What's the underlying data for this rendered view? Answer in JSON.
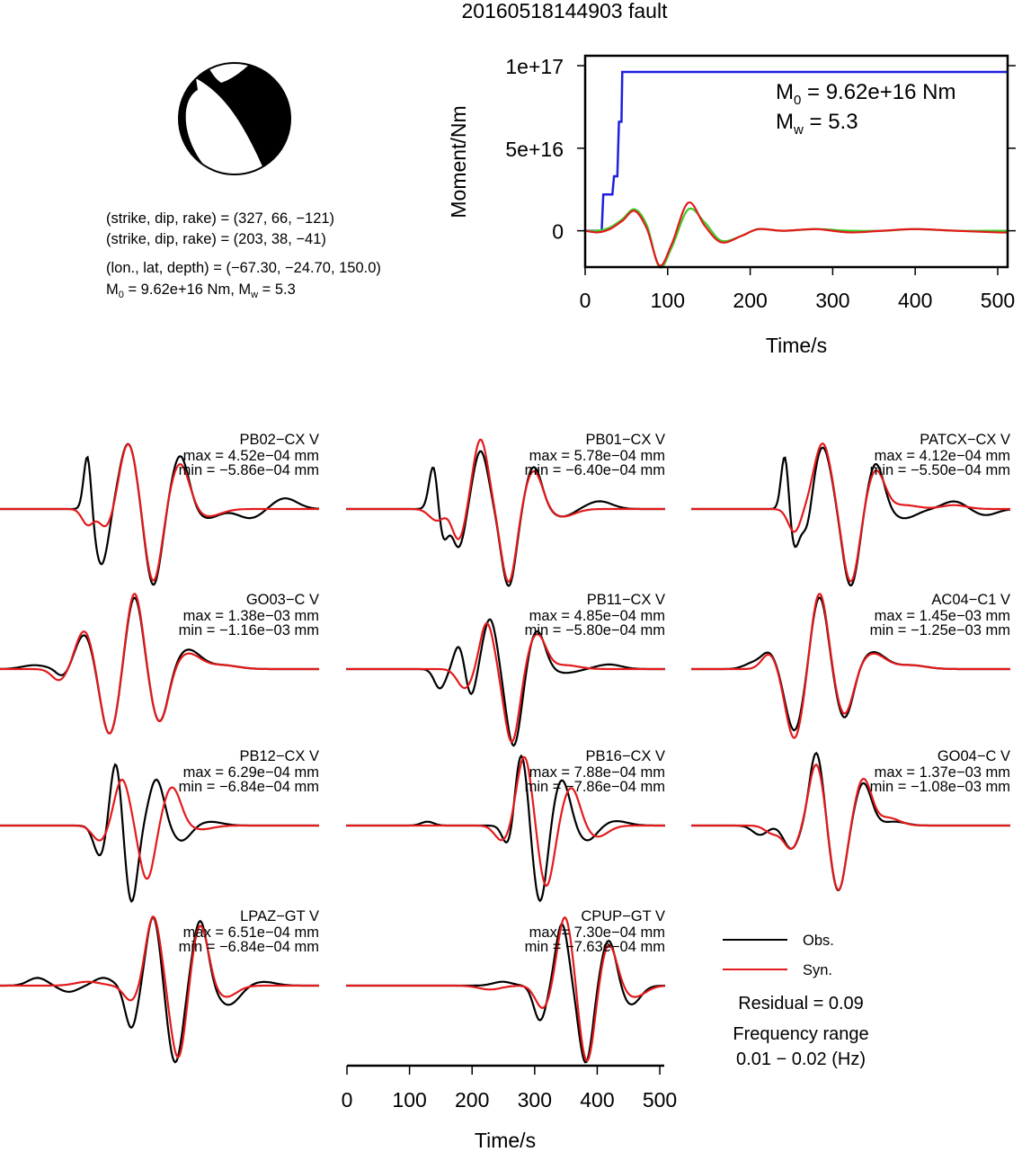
{
  "title": "20160518144903 fault",
  "mechanism": {
    "nodal_plane_1": "(strike, dip, rake) = (327, 66, −121)",
    "nodal_plane_2": "(strike, dip, rake) = (203, 38, −41)",
    "location": "(lon., lat, depth) = (−67.30, −24.70, 150.0)",
    "moment_prefix": "M",
    "moment_sub": "0",
    "moment_value": " = 9.62e+16 Nm, M",
    "mw_sub": "w",
    "mw_value": " = 5.3"
  },
  "colors": {
    "observed": "#000000",
    "synthetic": "#e31a1c",
    "moment": "#1f1fe0",
    "green": "#3ccc28"
  },
  "chart_data": [
    {
      "type": "line",
      "title": "",
      "xlabel": "Time/s",
      "ylabel": "Moment/Nm",
      "xlim": [
        0,
        512
      ],
      "ylim": [
        -22000000000000000,
        106000000000000000
      ],
      "x_ticks": [
        "0",
        "100",
        "200",
        "300",
        "400",
        "500"
      ],
      "y_ticks": [
        "0",
        "5e+16",
        "1e+17"
      ],
      "annotation": {
        "m0_label": "M",
        "m0_sub": "0",
        "m0_value": " = 9.62e+16 Nm",
        "mw_label": "M",
        "mw_sub": "w",
        "mw_value": " = 5.3"
      },
      "series": [
        {
          "color": "#1f1fe0",
          "x": [
            0,
            20,
            22,
            33,
            35,
            39,
            41,
            44,
            45,
            512
          ],
          "y": [
            0,
            0,
            22000000000000000,
            22000000000000000,
            33000000000000000,
            33000000000000000,
            66000000000000000,
            66000000000000000,
            96200000000000000,
            96200000000000000
          ]
        },
        {
          "color": "#3ccc28",
          "x": [
            0,
            15,
            30,
            45,
            60,
            75,
            90,
            105,
            125,
            145,
            165,
            190,
            210,
            240,
            280,
            320,
            360,
            400,
            450,
            500,
            512
          ],
          "y": [
            0,
            0,
            2000000000000000,
            7000000000000000,
            13000000000000000,
            3000000000000000,
            -22000000000000000,
            -10000000000000000,
            13000000000000000,
            5000000000000000,
            -6000000000000000,
            -3000000000000000,
            1000000000000000,
            0,
            1000000000000000,
            0,
            0,
            1000000000000000,
            0,
            0,
            0
          ]
        },
        {
          "color": "#e31a1c",
          "x": [
            0,
            15,
            30,
            45,
            60,
            75,
            90,
            105,
            125,
            145,
            165,
            190,
            210,
            240,
            280,
            320,
            360,
            400,
            450,
            500,
            512
          ],
          "y": [
            0,
            -1000000000000000,
            1000000000000000,
            6000000000000000,
            12000000000000000,
            1000000000000000,
            -21000000000000000,
            -8000000000000000,
            17000000000000000,
            3000000000000000,
            -7000000000000000,
            -3000000000000000,
            1000000000000000,
            0,
            1000000000000000,
            -1000000000000000,
            0,
            1000000000000000,
            0,
            -1000000000000000,
            -1000000000000000
          ]
        }
      ]
    },
    {
      "type": "line",
      "xlabel": "Time/s",
      "xlim": [
        0,
        510
      ],
      "x_ticks": [
        "0",
        "100",
        "200",
        "300",
        "400",
        "500"
      ],
      "legend": {
        "position": "bottom-right",
        "observed": "Obs.",
        "synthetic": "Syn."
      },
      "residual": "Residual = 0.09",
      "freq_label": "Frequency range",
      "freq_value": "0.01 − 0.02 (Hz)",
      "stations": [
        {
          "name": "PB02−CX V",
          "max": "max = 4.52e−04 mm",
          "min": "min = −5.86e−04 mm",
          "pulses": [
            [
              140,
              9,
              -0.2
            ],
            [
              170,
              12,
              -0.25
            ],
            [
              205,
              14,
              0.85
            ],
            [
              245,
              13,
              -0.95
            ],
            [
              288,
              15,
              0.6
            ],
            [
              330,
              22,
              -0.1
            ]
          ],
          "obs": [
            [
              140,
              6,
              0.75
            ],
            [
              160,
              10,
              -0.6
            ],
            [
              170,
              9,
              -0.2
            ],
            [
              205,
              14,
              0.85
            ],
            [
              245,
              13,
              -1.0
            ],
            [
              288,
              14,
              0.7
            ],
            [
              330,
              20,
              -0.12
            ],
            [
              400,
              20,
              -0.12
            ],
            [
              455,
              20,
              0.14
            ]
          ]
        },
        {
          "name": "PB01−CX V",
          "max": "max = 5.78e−04 mm",
          "min": "min = −6.40e−04 mm",
          "pulses": [
            [
              145,
              12,
              -0.15
            ],
            [
              180,
              10,
              -0.4
            ],
            [
              215,
              12,
              0.9
            ],
            [
              260,
              12,
              -0.95
            ],
            [
              300,
              14,
              0.5
            ],
            [
              345,
              20,
              -0.1
            ]
          ],
          "obs": [
            [
              140,
              7,
              0.6
            ],
            [
              155,
              8,
              -0.4
            ],
            [
              180,
              10,
              -0.5
            ],
            [
              215,
              12,
              0.75
            ],
            [
              260,
              12,
              -1.0
            ],
            [
              300,
              13,
              0.55
            ],
            [
              345,
              18,
              -0.1
            ],
            [
              405,
              20,
              0.1
            ]
          ]
        },
        {
          "name": "PATCX−CX V",
          "max": "max = 4.12e−04 mm",
          "min": "min = −5.50e−04 mm",
          "pulses": [
            [
              165,
              10,
              -0.3
            ],
            [
              210,
              14,
              0.85
            ],
            [
              255,
              13,
              -0.95
            ],
            [
              295,
              14,
              0.5
            ],
            [
              340,
              22,
              0.05
            ],
            [
              420,
              20,
              0.05
            ]
          ],
          "obs": [
            [
              150,
              6,
              0.75
            ],
            [
              165,
              8,
              -0.5
            ],
            [
              185,
              8,
              -0.35
            ],
            [
              210,
              14,
              0.8
            ],
            [
              255,
              13,
              -1.0
            ],
            [
              295,
              13,
              0.6
            ],
            [
              340,
              20,
              -0.12
            ],
            [
              420,
              18,
              0.1
            ],
            [
              470,
              18,
              -0.08
            ]
          ]
        },
        {
          "name": "GO03−C V",
          "max": "max = 1.38e−03 mm",
          "min": "min = −1.16e−03 mm",
          "pulses": [
            [
              95,
              12,
              -0.15
            ],
            [
              135,
              14,
              0.5
            ],
            [
              175,
              14,
              -0.85
            ],
            [
              215,
              13,
              1.0
            ],
            [
              255,
              14,
              -0.7
            ],
            [
              300,
              20,
              0.2
            ],
            [
              355,
              25,
              0.05
            ]
          ],
          "obs": [
            [
              55,
              20,
              0.05
            ],
            [
              100,
              10,
              -0.1
            ],
            [
              135,
              14,
              0.45
            ],
            [
              175,
              14,
              -0.85
            ],
            [
              215,
              13,
              0.95
            ],
            [
              255,
              14,
              -0.7
            ],
            [
              300,
              20,
              0.25
            ],
            [
              355,
              25,
              0.05
            ]
          ]
        },
        {
          "name": "PB11−CX V",
          "max": "max = 4.85e−04 mm",
          "min": "min = −5.80e−04 mm",
          "pulses": [
            [
              190,
              12,
              -0.25
            ],
            [
              225,
              11,
              0.6
            ],
            [
              265,
              12,
              -0.95
            ],
            [
              305,
              14,
              0.45
            ],
            [
              350,
              22,
              0.05
            ]
          ],
          "obs": [
            [
              150,
              9,
              -0.25
            ],
            [
              180,
              8,
              0.3
            ],
            [
              200,
              8,
              -0.35
            ],
            [
              230,
              11,
              0.65
            ],
            [
              268,
              12,
              -1.0
            ],
            [
              305,
              13,
              0.5
            ],
            [
              350,
              20,
              -0.05
            ],
            [
              420,
              20,
              0.06
            ]
          ]
        },
        {
          "name": "AC04−C1 V",
          "max": "max = 1.45e−03 mm",
          "min": "min = −1.25e−03 mm",
          "pulses": [
            [
              125,
              12,
              0.2
            ],
            [
              165,
              14,
              -0.9
            ],
            [
              205,
              13,
              1.0
            ],
            [
              245,
              14,
              -0.6
            ],
            [
              290,
              20,
              0.2
            ],
            [
              350,
              25,
              0.05
            ]
          ],
          "obs": [
            [
              100,
              15,
              0.08
            ],
            [
              125,
              12,
              0.2
            ],
            [
              165,
              14,
              -0.8
            ],
            [
              205,
              13,
              0.95
            ],
            [
              245,
              14,
              -0.65
            ],
            [
              290,
              20,
              0.22
            ],
            [
              350,
              25,
              0.05
            ]
          ]
        },
        {
          "name": "PB12−CX V",
          "max": "max = 6.29e−04 mm",
          "min": "min = −6.84e−04 mm",
          "pulses": [
            [
              160,
              12,
              -0.2
            ],
            [
              195,
              12,
              0.6
            ],
            [
              235,
              12,
              -0.7
            ],
            [
              275,
              14,
              0.5
            ],
            [
              320,
              20,
              -0.05
            ]
          ],
          "obs": [
            [
              160,
              10,
              -0.4
            ],
            [
              185,
              9,
              0.85
            ],
            [
              210,
              10,
              -1.0
            ],
            [
              250,
              12,
              0.6
            ],
            [
              290,
              15,
              -0.2
            ],
            [
              335,
              20,
              0.05
            ]
          ]
        },
        {
          "name": "PB16−CX V",
          "max": "max = 7.88e−04 mm",
          "min": "min = −7.86e−04 mm",
          "pulses": [
            [
              250,
              12,
              -0.2
            ],
            [
              285,
              12,
              0.9
            ],
            [
              320,
              12,
              -0.8
            ],
            [
              360,
              14,
              0.5
            ],
            [
              400,
              18,
              -0.15
            ]
          ],
          "obs": [
            [
              130,
              10,
              0.05
            ],
            [
              260,
              9,
              -0.3
            ],
            [
              280,
              10,
              0.95
            ],
            [
              310,
              11,
              -1.0
            ],
            [
              345,
              13,
              0.6
            ],
            [
              385,
              16,
              -0.2
            ],
            [
              430,
              20,
              0.06
            ]
          ]
        },
        {
          "name": "GO04−C V",
          "max": "max = 1.37e−03 mm",
          "min": "min = −1.08e−03 mm",
          "pulses": [
            [
              130,
              12,
              -0.1
            ],
            [
              160,
              12,
              -0.3
            ],
            [
              200,
              12,
              0.8
            ],
            [
              235,
              12,
              -0.85
            ],
            [
              275,
              13,
              0.6
            ],
            [
              315,
              18,
              0.1
            ]
          ],
          "obs": [
            [
              110,
              12,
              -0.12
            ],
            [
              160,
              12,
              -0.3
            ],
            [
              200,
              11,
              0.95
            ],
            [
              235,
              12,
              -0.85
            ],
            [
              275,
              13,
              0.55
            ],
            [
              325,
              18,
              0.05
            ]
          ]
        },
        {
          "name": "LPAZ−GT V",
          "max": "max = 6.51e−04 mm",
          "min": "min = −6.84e−04 mm",
          "pulses": [
            [
              140,
              20,
              0.05
            ],
            [
              210,
              12,
              -0.2
            ],
            [
              245,
              12,
              0.9
            ],
            [
              285,
              12,
              -0.95
            ],
            [
              320,
              13,
              0.8
            ],
            [
              360,
              18,
              -0.15
            ]
          ],
          "obs": [
            [
              60,
              15,
              0.1
            ],
            [
              110,
              15,
              -0.08
            ],
            [
              165,
              15,
              0.1
            ],
            [
              210,
              10,
              -0.55
            ],
            [
              245,
              11,
              0.9
            ],
            [
              280,
              12,
              -1.0
            ],
            [
              320,
              12,
              0.85
            ],
            [
              365,
              18,
              -0.25
            ],
            [
              420,
              20,
              0.05
            ]
          ]
        },
        {
          "name": "CPUP−GT V",
          "max": "max = 7.30e−04 mm",
          "min": "min = −7.63e−04 mm",
          "pulses": [
            [
              230,
              18,
              -0.05
            ],
            [
              315,
              12,
              -0.3
            ],
            [
              350,
              12,
              0.9
            ],
            [
              385,
              12,
              -1.0
            ],
            [
              420,
              13,
              0.55
            ],
            [
              460,
              18,
              -0.15
            ]
          ],
          "obs": [
            [
              250,
              15,
              0.05
            ],
            [
              310,
              10,
              -0.45
            ],
            [
              345,
              10,
              0.8
            ],
            [
              383,
              11,
              -1.0
            ],
            [
              420,
              12,
              0.6
            ],
            [
              455,
              15,
              -0.25
            ]
          ]
        }
      ]
    }
  ]
}
